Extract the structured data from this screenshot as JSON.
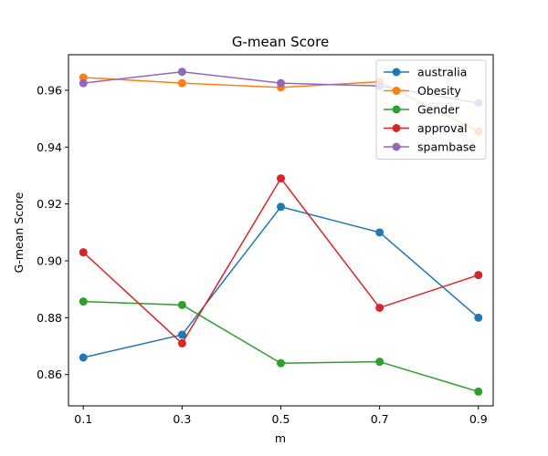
{
  "chart_data": {
    "type": "line",
    "title": "G-mean Score",
    "xlabel": "m",
    "ylabel": "G-mean Score",
    "x": [
      0.1,
      0.3,
      0.5,
      0.7,
      0.9
    ],
    "x_tick_labels": [
      "0.1",
      "0.3",
      "0.5",
      "0.7",
      "0.9"
    ],
    "ylim": [
      0.849,
      0.9725
    ],
    "y_ticks": [
      0.86,
      0.88,
      0.9,
      0.92,
      0.94,
      0.96
    ],
    "y_tick_labels": [
      "0.86",
      "0.88",
      "0.90",
      "0.92",
      "0.94",
      "0.96"
    ],
    "grid": false,
    "legend_position": "top-right",
    "series": [
      {
        "name": "australia",
        "color": "#1f77b4",
        "values": [
          0.866,
          0.874,
          0.919,
          0.91,
          0.88
        ]
      },
      {
        "name": "Obesity",
        "color": "#ff7f0e",
        "values": [
          0.9645,
          0.9625,
          0.961,
          0.963,
          0.9455
        ]
      },
      {
        "name": "Gender",
        "color": "#2ca02c",
        "values": [
          0.8857,
          0.8845,
          0.864,
          0.8645,
          0.854
        ]
      },
      {
        "name": "approval",
        "color": "#d62728",
        "values": [
          0.903,
          0.871,
          0.929,
          0.8835,
          0.895
        ]
      },
      {
        "name": "spambase",
        "color": "#9467bd",
        "values": [
          0.9625,
          0.9665,
          0.9625,
          0.9615,
          0.9555
        ]
      }
    ]
  }
}
